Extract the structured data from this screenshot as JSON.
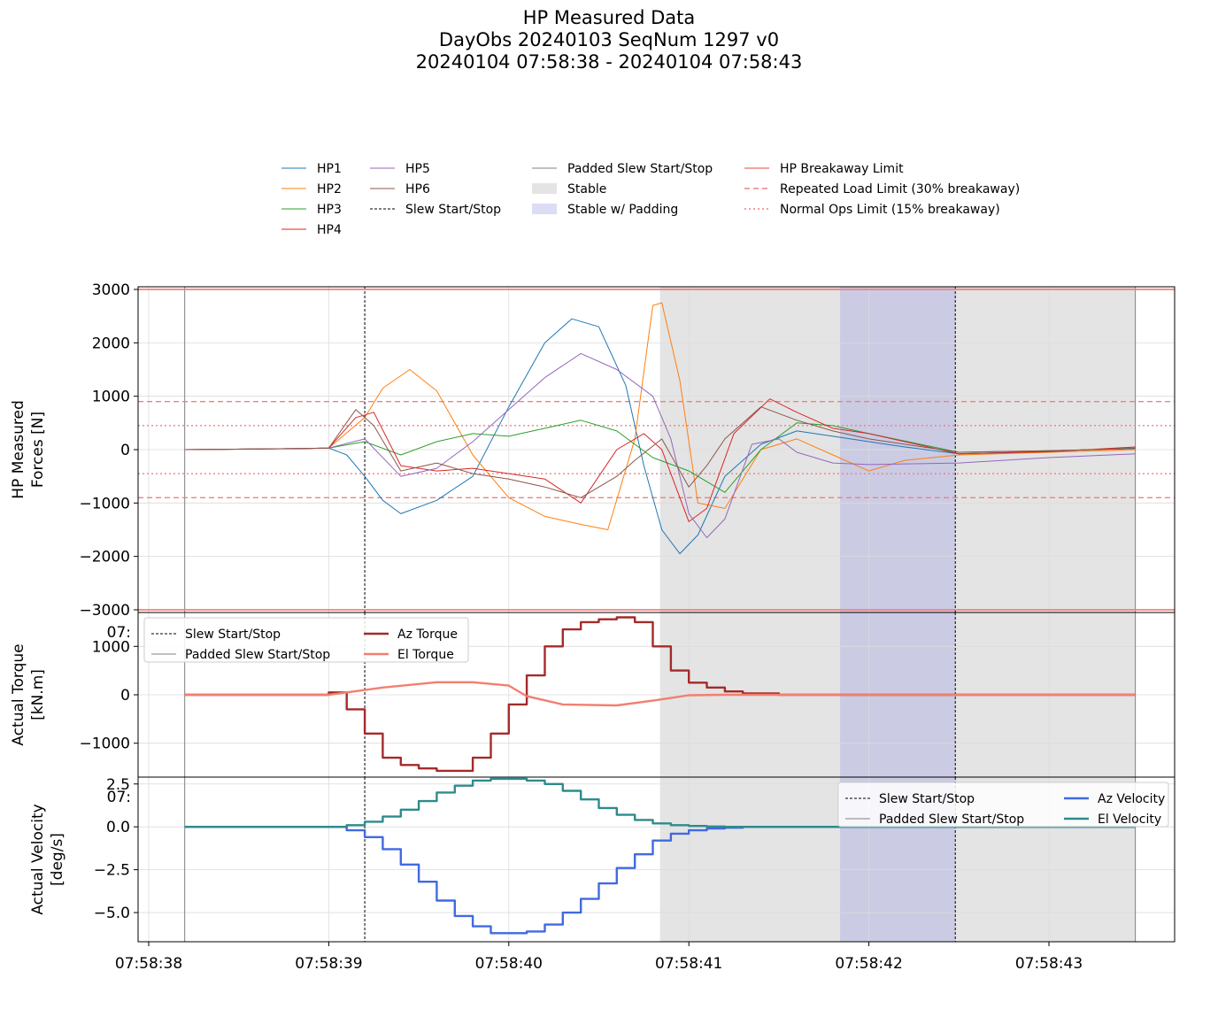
{
  "title_lines": [
    "HP Measured Data",
    "DayObs 20240103 SeqNum 1297 v0",
    "20240104 07:58:38 - 20240104 07:58:43"
  ],
  "colors": {
    "hp": [
      "#1f77b4",
      "#ff7f0e",
      "#2ca02c",
      "#d62728",
      "#9467bd",
      "#8c564b"
    ],
    "limit": "#f08080",
    "stable": "#e4e4e4",
    "stable_padding": "#cbcbe4",
    "az_torque": "#a52a2a",
    "el_torque": "#f08070",
    "az_velocity": "#4169e1",
    "el_velocity": "#2e8b8b"
  },
  "time_ticks": [
    "07:58:38",
    "07:58:39",
    "07:58:40",
    "07:58:41",
    "07:58:42",
    "07:58:43"
  ],
  "events": {
    "slew_start_s": 1.2,
    "slew_stop_s": 4.48,
    "padded_start_s": 0.2,
    "padded_stop_s": 5.48,
    "stable_start_s": 2.84,
    "stable_end_s": 5.48,
    "stable_padding_start_s": 3.84,
    "stable_padding_end_s": 4.48
  },
  "top_legend": {
    "col1": [
      "HP1",
      "HP2",
      "HP3",
      "HP4"
    ],
    "col2": [
      "HP5",
      "HP6",
      "Slew Start/Stop"
    ],
    "col3": [
      "Padded Slew Start/Stop",
      "Stable",
      "Stable w/ Padding"
    ],
    "col4": [
      "HP Breakaway Limit",
      "Repeated Load Limit (30% breakaway)",
      "Normal Ops Limit (15% breakaway)"
    ]
  },
  "chart_data": [
    {
      "type": "line",
      "ylabel": "HP Measured\nForces [N]",
      "xlim_s": [
        -0.2,
        5.75
      ],
      "ylim": [
        -3050,
        3050
      ],
      "yticks": [
        3000,
        2000,
        1000,
        0,
        -1000,
        -2000,
        -3000
      ],
      "ytick_labels": [
        "3000",
        "2000",
        "1000",
        "0",
        "−1000",
        "−2000",
        "−3000"
      ],
      "limits": {
        "breakaway": 3000,
        "repeated_load": 900,
        "normal_ops": 450
      },
      "series": [
        {
          "name": "HP1",
          "x": [
            0.2,
            0.85,
            1.0,
            1.1,
            1.2,
            1.3,
            1.4,
            1.6,
            1.8,
            2.0,
            2.2,
            2.35,
            2.5,
            2.65,
            2.75,
            2.85,
            2.95,
            3.05,
            3.2,
            3.4,
            3.6,
            3.8,
            4.0,
            4.2,
            4.5,
            5.0,
            5.48
          ],
          "y": [
            0,
            20,
            30,
            -100,
            -500,
            -950,
            -1200,
            -950,
            -500,
            800,
            2000,
            2450,
            2300,
            1200,
            -300,
            -1500,
            -1950,
            -1600,
            -500,
            100,
            350,
            250,
            150,
            50,
            -80,
            -30,
            30
          ]
        },
        {
          "name": "HP2",
          "x": [
            0.2,
            0.85,
            1.0,
            1.2,
            1.3,
            1.45,
            1.6,
            1.8,
            2.0,
            2.2,
            2.4,
            2.55,
            2.7,
            2.8,
            2.85,
            2.95,
            3.05,
            3.2,
            3.4,
            3.6,
            3.8,
            4.0,
            4.2,
            4.5,
            5.0,
            5.48
          ],
          "y": [
            0,
            20,
            30,
            600,
            1150,
            1500,
            1100,
            -100,
            -900,
            -1250,
            -1400,
            -1500,
            200,
            2700,
            2750,
            1300,
            -1000,
            -1100,
            0,
            200,
            -100,
            -400,
            -200,
            -100,
            -50,
            0
          ]
        },
        {
          "name": "HP3",
          "x": [
            0.2,
            0.85,
            1.0,
            1.2,
            1.4,
            1.6,
            1.8,
            2.0,
            2.2,
            2.4,
            2.6,
            2.8,
            3.0,
            3.2,
            3.4,
            3.6,
            3.8,
            4.0,
            4.5,
            5.0,
            5.48
          ],
          "y": [
            0,
            20,
            30,
            150,
            -100,
            150,
            300,
            250,
            400,
            550,
            350,
            -150,
            -400,
            -800,
            0,
            500,
            450,
            300,
            -50,
            -20,
            20
          ]
        },
        {
          "name": "HP4",
          "x": [
            0.2,
            0.85,
            1.0,
            1.15,
            1.25,
            1.4,
            1.6,
            1.8,
            2.0,
            2.2,
            2.4,
            2.6,
            2.75,
            2.85,
            3.0,
            3.1,
            3.25,
            3.45,
            3.6,
            3.8,
            4.0,
            4.5,
            5.0,
            5.48
          ],
          "y": [
            0,
            20,
            30,
            600,
            700,
            -300,
            -400,
            -350,
            -450,
            -550,
            -1000,
            0,
            300,
            0,
            -1350,
            -1100,
            300,
            950,
            700,
            400,
            300,
            -80,
            -40,
            50
          ]
        },
        {
          "name": "HP5",
          "x": [
            0.2,
            0.85,
            1.0,
            1.2,
            1.4,
            1.6,
            1.8,
            2.0,
            2.2,
            2.4,
            2.6,
            2.8,
            2.9,
            3.0,
            3.1,
            3.2,
            3.35,
            3.5,
            3.6,
            3.8,
            4.0,
            4.5,
            5.0,
            5.48
          ],
          "y": [
            0,
            20,
            30,
            200,
            -500,
            -350,
            150,
            750,
            1350,
            1800,
            1500,
            1000,
            200,
            -1200,
            -1650,
            -1300,
            100,
            200,
            -50,
            -250,
            -280,
            -250,
            -150,
            -80
          ]
        },
        {
          "name": "HP6",
          "x": [
            0.2,
            0.85,
            1.0,
            1.15,
            1.25,
            1.4,
            1.6,
            1.8,
            2.0,
            2.2,
            2.4,
            2.6,
            2.7,
            2.85,
            3.0,
            3.1,
            3.2,
            3.4,
            3.6,
            3.8,
            4.0,
            4.5,
            5.0,
            5.48
          ],
          "y": [
            0,
            20,
            30,
            750,
            450,
            -400,
            -250,
            -450,
            -550,
            -700,
            -900,
            -500,
            -200,
            200,
            -700,
            -300,
            200,
            800,
            550,
            350,
            200,
            -50,
            -20,
            20
          ]
        }
      ]
    },
    {
      "type": "line",
      "ylabel": "Actual Torque\n[kN.m]",
      "ylim": [
        -1700,
        1700
      ],
      "yticks": [
        1000,
        0,
        -1000
      ],
      "ytick_labels": [
        "1000",
        "0",
        "−1000"
      ],
      "stray_tick_label": "07:",
      "legend_left": [
        "Slew Start/Stop",
        "Padded Slew Start/Stop"
      ],
      "legend_right": [
        "Az Torque",
        "El Torque"
      ],
      "series": [
        {
          "name": "Az Torque",
          "step": true,
          "x": [
            0.2,
            1.0,
            1.1,
            1.2,
            1.3,
            1.4,
            1.5,
            1.6,
            1.7,
            1.8,
            1.9,
            2.0,
            2.1,
            2.2,
            2.3,
            2.4,
            2.5,
            2.6,
            2.7,
            2.8,
            2.9,
            3.0,
            3.1,
            3.2,
            3.3,
            3.5,
            3.8,
            5.48
          ],
          "y": [
            0,
            50,
            -300,
            -800,
            -1300,
            -1450,
            -1520,
            -1570,
            -1570,
            -1300,
            -800,
            -200,
            400,
            1000,
            1350,
            1500,
            1560,
            1600,
            1500,
            1000,
            500,
            250,
            150,
            70,
            30,
            0,
            0,
            0
          ]
        },
        {
          "name": "El Torque",
          "step": false,
          "x": [
            0.2,
            1.0,
            1.1,
            1.3,
            1.6,
            1.8,
            2.0,
            2.1,
            2.3,
            2.6,
            2.8,
            3.0,
            3.2,
            3.5,
            5.48
          ],
          "y": [
            0,
            0,
            50,
            150,
            260,
            260,
            190,
            -30,
            -200,
            -220,
            -120,
            -10,
            0,
            0,
            0
          ]
        }
      ]
    },
    {
      "type": "line",
      "ylabel": "Actual Velocity\n[deg/s]",
      "ylim": [
        -6.7,
        2.9
      ],
      "yticks": [
        2.5,
        0.0,
        -2.5,
        -5.0
      ],
      "ytick_labels": [
        "2.5",
        "0.0",
        "−2.5",
        "−5.0"
      ],
      "stray_tick_label": "07:",
      "legend_left": [
        "Slew Start/Stop",
        "Padded Slew Start/Stop"
      ],
      "legend_right": [
        "Az Velocity",
        "El Velocity"
      ],
      "series": [
        {
          "name": "Az Velocity",
          "step": true,
          "x": [
            0.2,
            1.0,
            1.1,
            1.2,
            1.3,
            1.4,
            1.5,
            1.6,
            1.7,
            1.8,
            1.9,
            2.0,
            2.1,
            2.2,
            2.3,
            2.4,
            2.5,
            2.6,
            2.7,
            2.8,
            2.9,
            3.0,
            3.1,
            3.2,
            3.3,
            3.5,
            5.48
          ],
          "y": [
            0,
            0,
            -0.2,
            -0.6,
            -1.3,
            -2.2,
            -3.2,
            -4.3,
            -5.2,
            -5.8,
            -6.2,
            -6.2,
            -6.1,
            -5.7,
            -5.0,
            -4.2,
            -3.3,
            -2.4,
            -1.6,
            -0.8,
            -0.4,
            -0.2,
            -0.1,
            -0.05,
            0,
            0,
            0
          ]
        },
        {
          "name": "El Velocity",
          "step": true,
          "x": [
            0.2,
            1.0,
            1.1,
            1.2,
            1.3,
            1.4,
            1.5,
            1.6,
            1.7,
            1.8,
            1.9,
            2.0,
            2.1,
            2.2,
            2.3,
            2.4,
            2.5,
            2.6,
            2.7,
            2.8,
            2.9,
            3.0,
            3.1,
            3.2,
            3.3,
            5.48
          ],
          "y": [
            0,
            0,
            0.1,
            0.3,
            0.6,
            1.0,
            1.5,
            2.0,
            2.4,
            2.7,
            2.8,
            2.8,
            2.7,
            2.5,
            2.1,
            1.6,
            1.1,
            0.7,
            0.4,
            0.2,
            0.1,
            0.05,
            0.02,
            0,
            0,
            0
          ]
        }
      ]
    }
  ]
}
